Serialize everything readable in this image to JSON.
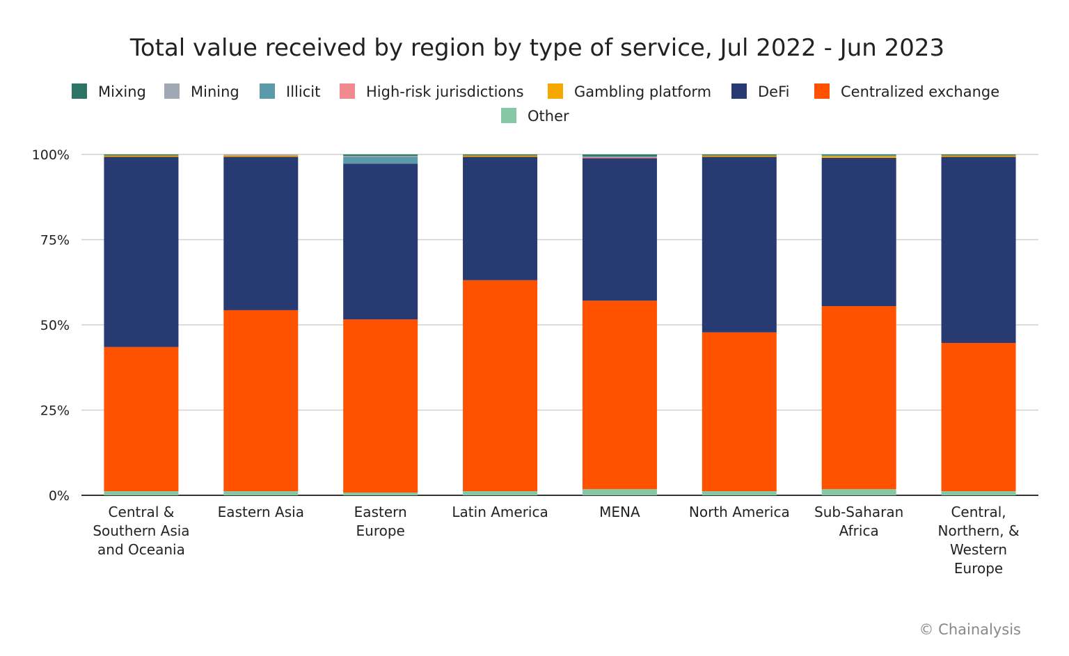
{
  "chart_data": {
    "type": "bar",
    "stacked": true,
    "title": "Total value received by region by type of service, Jul 2022 - Jun 2023",
    "xlabel": "",
    "ylabel": "",
    "ylim": [
      0,
      100
    ],
    "yticks": [
      "0%",
      "25%",
      "50%",
      "75%",
      "100%"
    ],
    "grid": true,
    "legend_position": "top",
    "categories": [
      [
        "Central &",
        "Southern Asia",
        "and Oceania"
      ],
      [
        "Eastern Asia"
      ],
      [
        "Eastern",
        "Europe"
      ],
      [
        "Latin America"
      ],
      [
        "MENA"
      ],
      [
        "North America"
      ],
      [
        "Sub-Saharan",
        "Africa"
      ],
      [
        "Central,",
        "Northern, &",
        "Western",
        "Europe"
      ]
    ],
    "series": [
      {
        "name": "Other",
        "color": "#86c8a6",
        "values": [
          1.2,
          1.2,
          0.8,
          1.2,
          1.8,
          1.2,
          1.8,
          1.2
        ]
      },
      {
        "name": "Centralized exchange",
        "color": "#ff5200",
        "values": [
          42.3,
          53.1,
          50.8,
          61.9,
          55.3,
          46.6,
          53.7,
          43.5
        ]
      },
      {
        "name": "DeFi",
        "color": "#283a72",
        "values": [
          55.8,
          45.0,
          45.7,
          36.2,
          41.8,
          51.5,
          43.5,
          54.6
        ]
      },
      {
        "name": "Gambling platform",
        "color": "#f7a800",
        "values": [
          0.4,
          0.4,
          0.0,
          0.4,
          0.0,
          0.4,
          0.5,
          0.4
        ]
      },
      {
        "name": "High-risk jurisdictions",
        "color": "#f08a8e",
        "values": [
          0.0,
          0.0,
          0.0,
          0.0,
          0.3,
          0.0,
          0.0,
          0.0
        ]
      },
      {
        "name": "Illicit",
        "color": "#5b9aa8",
        "values": [
          0.0,
          0.0,
          2.0,
          0.0,
          0.3,
          0.0,
          0.3,
          0.0
        ]
      },
      {
        "name": "Mining",
        "color": "#a0a8b4",
        "values": [
          0.0,
          0.3,
          0.3,
          0.0,
          0.0,
          0.0,
          0.0,
          0.0
        ]
      },
      {
        "name": "Mixing",
        "color": "#2e7464",
        "values": [
          0.3,
          0.0,
          0.4,
          0.3,
          0.5,
          0.3,
          0.2,
          0.3
        ]
      }
    ],
    "legend_order": [
      "Mixing",
      "Mining",
      "Illicit",
      "High-risk jurisdictions",
      "Gambling platform",
      "DeFi",
      "Centralized exchange",
      "Other"
    ],
    "source": "© Chainalysis"
  }
}
